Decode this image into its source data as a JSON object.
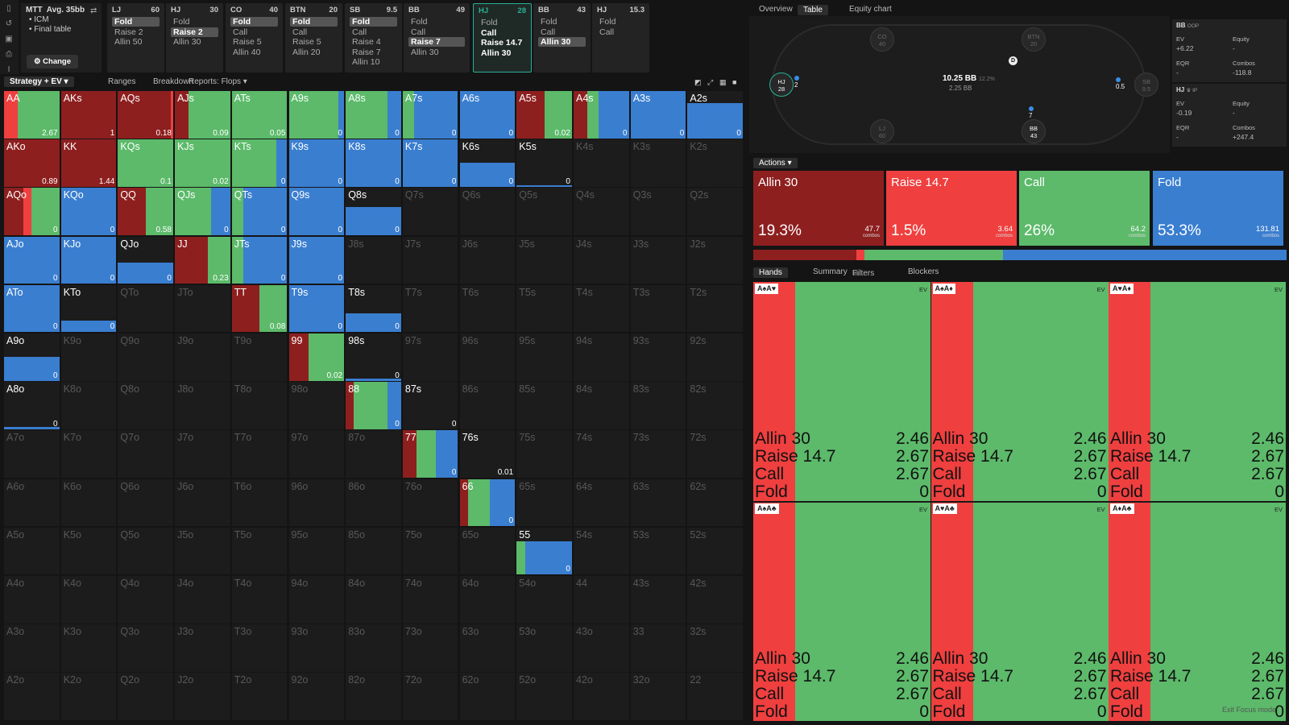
{
  "mtt": {
    "title": "MTT",
    "avg": "Avg. 35bb",
    "bullets": [
      "• ICM",
      "• Final table"
    ],
    "change": "⚙ Change"
  },
  "cards": [
    {
      "pos": "LJ",
      "stack": "60",
      "actions": [
        "Fold",
        "Raise 2",
        "Allin 50"
      ],
      "sel": 0
    },
    {
      "pos": "HJ",
      "stack": "30",
      "actions": [
        "Fold",
        "Raise 2",
        "Allin 30"
      ],
      "sel": 1
    },
    {
      "pos": "CO",
      "stack": "40",
      "actions": [
        "Fold",
        "Call",
        "Raise 5",
        "Allin 40"
      ],
      "sel": 0
    },
    {
      "pos": "BTN",
      "stack": "20",
      "actions": [
        "Fold",
        "Call",
        "Raise 5",
        "Allin 20"
      ],
      "sel": 0
    },
    {
      "pos": "SB",
      "stack": "9.5",
      "actions": [
        "Fold",
        "Call",
        "Raise 4",
        "Raise 7",
        "Allin 10"
      ],
      "sel": 0
    },
    {
      "pos": "BB",
      "stack": "49",
      "actions": [
        "Fold",
        "Call",
        "Raise 7",
        "Allin 30"
      ],
      "sel": 2
    },
    {
      "pos": "HJ",
      "stack": "28",
      "actions": [
        "Fold",
        "Call",
        "Raise 14.7",
        "Allin 30"
      ],
      "sel": -1,
      "active": true
    },
    {
      "pos": "BB",
      "stack": "43",
      "actions": [
        "Fold",
        "Call",
        "Allin 30"
      ],
      "sel": 2
    },
    {
      "pos": "HJ",
      "stack": "15.3",
      "actions": [
        "Fold",
        "Call"
      ],
      "sel": -1
    }
  ],
  "toolbar": {
    "strategy": "Strategy + EV",
    "ranges": "Ranges",
    "breakdown": "Breakdown",
    "reports": "Reports: Flops"
  },
  "colors": {
    "allin": "#8e1f1f",
    "raise": "#ef3f3f",
    "call": "#5cba6a",
    "fold": "#3a7ed0"
  },
  "grid": {
    "ranks": [
      "A",
      "K",
      "Q",
      "J",
      "T",
      "9",
      "8",
      "7",
      "6",
      "5",
      "4",
      "3",
      "2"
    ],
    "cells": {
      "AA": {
        "ev": "2.67",
        "m": [
          0,
          0.25,
          0.75,
          0
        ]
      },
      "AKs": {
        "ev": "1",
        "m": [
          1,
          0,
          0,
          0
        ]
      },
      "AQs": {
        "ev": "0.18",
        "m": [
          0.95,
          0.05,
          0,
          0
        ]
      },
      "AJs": {
        "ev": "0.09",
        "m": [
          0.25,
          0,
          0.75,
          0
        ]
      },
      "ATs": {
        "ev": "0.05",
        "m": [
          0,
          0,
          1,
          0
        ]
      },
      "A9s": {
        "ev": "0",
        "m": [
          0,
          0,
          0.9,
          0.1
        ]
      },
      "A8s": {
        "ev": "0",
        "m": [
          0,
          0,
          0.75,
          0.25
        ]
      },
      "A7s": {
        "ev": "0",
        "m": [
          0,
          0,
          0.2,
          0.8
        ]
      },
      "A6s": {
        "ev": "0",
        "m": [
          0,
          0,
          0,
          1
        ]
      },
      "A5s": {
        "ev": "0.02",
        "m": [
          0.5,
          0,
          0.5,
          0
        ]
      },
      "A4s": {
        "ev": "0",
        "m": [
          0.25,
          0,
          0.2,
          0.55
        ]
      },
      "A3s": {
        "ev": "0",
        "m": [
          0,
          0,
          0,
          1
        ]
      },
      "A2s": {
        "ev": "0",
        "m": [
          0,
          0,
          0,
          1,
          0.75
        ]
      },
      "AKo": {
        "ev": "0.89",
        "m": [
          1,
          0,
          0,
          0
        ]
      },
      "KK": {
        "ev": "1.44",
        "m": [
          1,
          0,
          0,
          0
        ]
      },
      "KQs": {
        "ev": "0.1",
        "m": [
          0,
          0,
          1,
          0
        ]
      },
      "KJs": {
        "ev": "0.02",
        "m": [
          0,
          0,
          1,
          0
        ]
      },
      "KTs": {
        "ev": "0",
        "m": [
          0,
          0,
          0.8,
          0.2
        ]
      },
      "K9s": {
        "ev": "0",
        "m": [
          0,
          0,
          0,
          1
        ]
      },
      "K8s": {
        "ev": "0",
        "m": [
          0,
          0,
          0,
          1
        ]
      },
      "K7s": {
        "ev": "0",
        "m": [
          0,
          0,
          0,
          1
        ]
      },
      "K6s": {
        "ev": "0",
        "m": [
          0,
          0,
          0,
          1,
          0.5
        ]
      },
      "K5s": {
        "ev": "0",
        "m": [
          0,
          0,
          0,
          1,
          0.03
        ]
      },
      "AQo": {
        "ev": "0",
        "m": [
          0.35,
          0.15,
          0.5,
          0
        ]
      },
      "KQo": {
        "ev": "0",
        "m": [
          0,
          0,
          0,
          1
        ]
      },
      "QQ": {
        "ev": "0.58",
        "m": [
          0.5,
          0,
          0.5,
          0
        ]
      },
      "QJs": {
        "ev": "0",
        "m": [
          0,
          0,
          0.65,
          0.35
        ]
      },
      "QTs": {
        "ev": "0",
        "m": [
          0,
          0,
          0.2,
          0.8
        ]
      },
      "Q9s": {
        "ev": "0",
        "m": [
          0,
          0,
          0,
          1
        ]
      },
      "Q8s": {
        "ev": "0",
        "m": [
          0,
          0,
          0,
          1,
          0.6
        ]
      },
      "AJo": {
        "ev": "0",
        "m": [
          0,
          0,
          0,
          1
        ]
      },
      "KJo": {
        "ev": "0",
        "m": [
          0,
          0,
          0,
          1
        ]
      },
      "QJo": {
        "ev": "0",
        "m": [
          0,
          0,
          0,
          1,
          0.45
        ]
      },
      "JJ": {
        "ev": "0.23",
        "m": [
          0.6,
          0,
          0.4,
          0
        ]
      },
      "JTs": {
        "ev": "0",
        "m": [
          0,
          0,
          0.2,
          0.8
        ]
      },
      "J9s": {
        "ev": "0",
        "m": [
          0,
          0,
          0,
          1
        ]
      },
      "ATo": {
        "ev": "0",
        "m": [
          0,
          0,
          0,
          1
        ]
      },
      "KTo": {
        "ev": "0",
        "m": [
          0,
          0,
          0,
          1,
          0.25
        ]
      },
      "TT": {
        "ev": "0.08",
        "m": [
          0.5,
          0,
          0.5,
          0
        ]
      },
      "T9s": {
        "ev": "0",
        "m": [
          0,
          0,
          0,
          1
        ]
      },
      "T8s": {
        "ev": "0",
        "m": [
          0,
          0,
          0,
          1,
          0.4
        ]
      },
      "A9o": {
        "ev": "0",
        "m": [
          0,
          0,
          0,
          1,
          0.5
        ]
      },
      "99": {
        "ev": "0.02",
        "m": [
          0.35,
          0,
          0.65,
          0
        ]
      },
      "98s": {
        "ev": "0",
        "m": [
          0,
          0,
          0,
          1,
          0.04
        ]
      },
      "A8o": {
        "ev": "0",
        "m": [
          0,
          0,
          0,
          1,
          0.04
        ]
      },
      "88": {
        "ev": "0",
        "m": [
          0.15,
          0,
          0.6,
          0.25
        ]
      },
      "87s": {
        "ev": "0",
        "m": [
          0,
          0,
          0,
          0
        ]
      },
      "77": {
        "ev": "0",
        "m": [
          0.25,
          0,
          0.35,
          0.4
        ]
      },
      "76s": {
        "ev": "0.01",
        "m": [
          0,
          0,
          0,
          0
        ]
      },
      "66": {
        "ev": "0",
        "m": [
          0.15,
          0,
          0.4,
          0.45
        ]
      },
      "55": {
        "ev": "0",
        "m": [
          0,
          0,
          0.15,
          0.85,
          0.7
        ]
      }
    }
  },
  "rtabs": {
    "overview": "Overview",
    "table": "Table",
    "equity": "Equity chart"
  },
  "table": {
    "seats": [
      {
        "id": "CO",
        "pos": "CO",
        "stack": "40"
      },
      {
        "id": "BTN",
        "pos": "BTN",
        "stack": "20"
      },
      {
        "id": "HJ",
        "pos": "HJ",
        "stack": "28"
      },
      {
        "id": "SB",
        "pos": "SB",
        "stack": "9.5"
      },
      {
        "id": "LJ",
        "pos": "LJ",
        "stack": "60"
      },
      {
        "id": "BB",
        "pos": "BB",
        "stack": "43"
      }
    ],
    "pot": "10.25 BB",
    "pot_pct": "12.2%",
    "pot_sub": "2.25 BB",
    "chips": {
      "hj": "2",
      "sb": "0.5",
      "bb": "7"
    },
    "dealer": "D"
  },
  "stats": [
    {
      "name": "BB",
      "tag": "OOP",
      "ev": "+6.22",
      "equity": "-",
      "eqr": "-",
      "combos": "-118.8",
      "evc": "pos",
      "cc": "neg"
    },
    {
      "name": "HJ",
      "tag": "♛ IP",
      "ev": "-0.19",
      "equity": "-",
      "eqr": "-",
      "combos": "+247.4",
      "evc": "neg",
      "cc": "pos"
    }
  ],
  "labels": {
    "ev": "EV",
    "equity": "Equity",
    "eqr": "EQR",
    "combos": "Combos",
    "combos_small": "combos"
  },
  "actions_label": "Actions",
  "action_boxes": [
    {
      "name": "Allin 30",
      "pct": "19.3%",
      "combos": "47.7",
      "freq": 0.193,
      "color": "#8e1f1f"
    },
    {
      "name": "Raise 14.7",
      "pct": "1.5%",
      "combos": "3.64",
      "freq": 0.015,
      "color": "#ef3f3f"
    },
    {
      "name": "Call",
      "pct": "26%",
      "combos": "64.2",
      "freq": 0.26,
      "color": "#5cba6a"
    },
    {
      "name": "Fold",
      "pct": "53.3%",
      "combos": "131.81",
      "freq": 0.533,
      "color": "#3a7ed0"
    }
  ],
  "btabs": {
    "hands": "Hands",
    "summary": "Summary",
    "filters": "Filters",
    "blockers": "Blockers"
  },
  "hands": [
    {
      "cards": "A♠A♥",
      "rows": [
        [
          "Allin 30",
          "2.46"
        ],
        [
          "Raise 14.7",
          "2.67"
        ],
        [
          "Call",
          "2.67"
        ],
        [
          "Fold",
          "0"
        ]
      ]
    },
    {
      "cards": "A♠A♦",
      "rows": [
        [
          "Allin 30",
          "2.46"
        ],
        [
          "Raise 14.7",
          "2.67"
        ],
        [
          "Call",
          "2.67"
        ],
        [
          "Fold",
          "0"
        ]
      ]
    },
    {
      "cards": "A♥A♦",
      "rows": [
        [
          "Allin 30",
          "2.46"
        ],
        [
          "Raise 14.7",
          "2.67"
        ],
        [
          "Call",
          "2.67"
        ],
        [
          "Fold",
          "0"
        ]
      ]
    },
    {
      "cards": "A♠A♣",
      "rows": [
        [
          "Allin 30",
          "2.46"
        ],
        [
          "Raise 14.7",
          "2.67"
        ],
        [
          "Call",
          "2.67"
        ],
        [
          "Fold",
          "0"
        ]
      ]
    },
    {
      "cards": "A♥A♣",
      "rows": [
        [
          "Allin 30",
          "2.46"
        ],
        [
          "Raise 14.7",
          "2.67"
        ],
        [
          "Call",
          "2.67"
        ],
        [
          "Fold",
          "0"
        ]
      ]
    },
    {
      "cards": "A♦A♣",
      "rows": [
        [
          "Allin 30",
          "2.46"
        ],
        [
          "Raise 14.7",
          "2.67"
        ],
        [
          "Call",
          "2.67"
        ],
        [
          "Fold",
          "0"
        ]
      ]
    }
  ],
  "ev_label": "EV",
  "exit_focus": "Exit Focus mode"
}
